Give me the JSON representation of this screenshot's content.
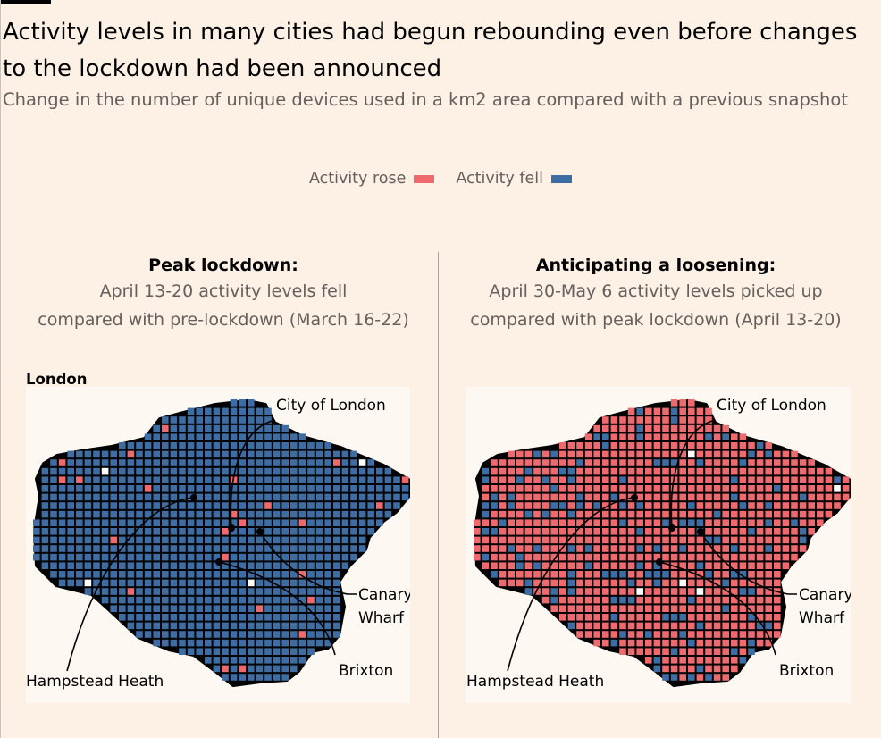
{
  "title": "Activity levels in many cities had begun rebounding even before changes to the lockdown had been announced",
  "subtitle": "Change in the number of unique devices used in a km2 area compared with a previous snapshot",
  "legend": [
    {
      "label": "Activity rose",
      "color": "#ee6a6e"
    },
    {
      "label": "Activity fell",
      "color": "#3d6da3"
    }
  ],
  "city": "London",
  "chart_data": {
    "type": "heatmap",
    "panels": [
      {
        "title": "Peak lockdown:",
        "description_line1": "April 13-20 activity levels fell",
        "description_line2": "compared with pre-lockdown (March 16-22)",
        "share_rose": 0.03
      },
      {
        "title": "Anticipating a loosening:",
        "description_line1": "April 30-May 6 activity levels picked up",
        "description_line2": "compared with peak lockdown (April 13-20)",
        "share_rose": 0.85
      }
    ],
    "annotations": [
      "City of London",
      "Canary Wharf",
      "Brixton",
      "Hampstead Heath"
    ]
  }
}
